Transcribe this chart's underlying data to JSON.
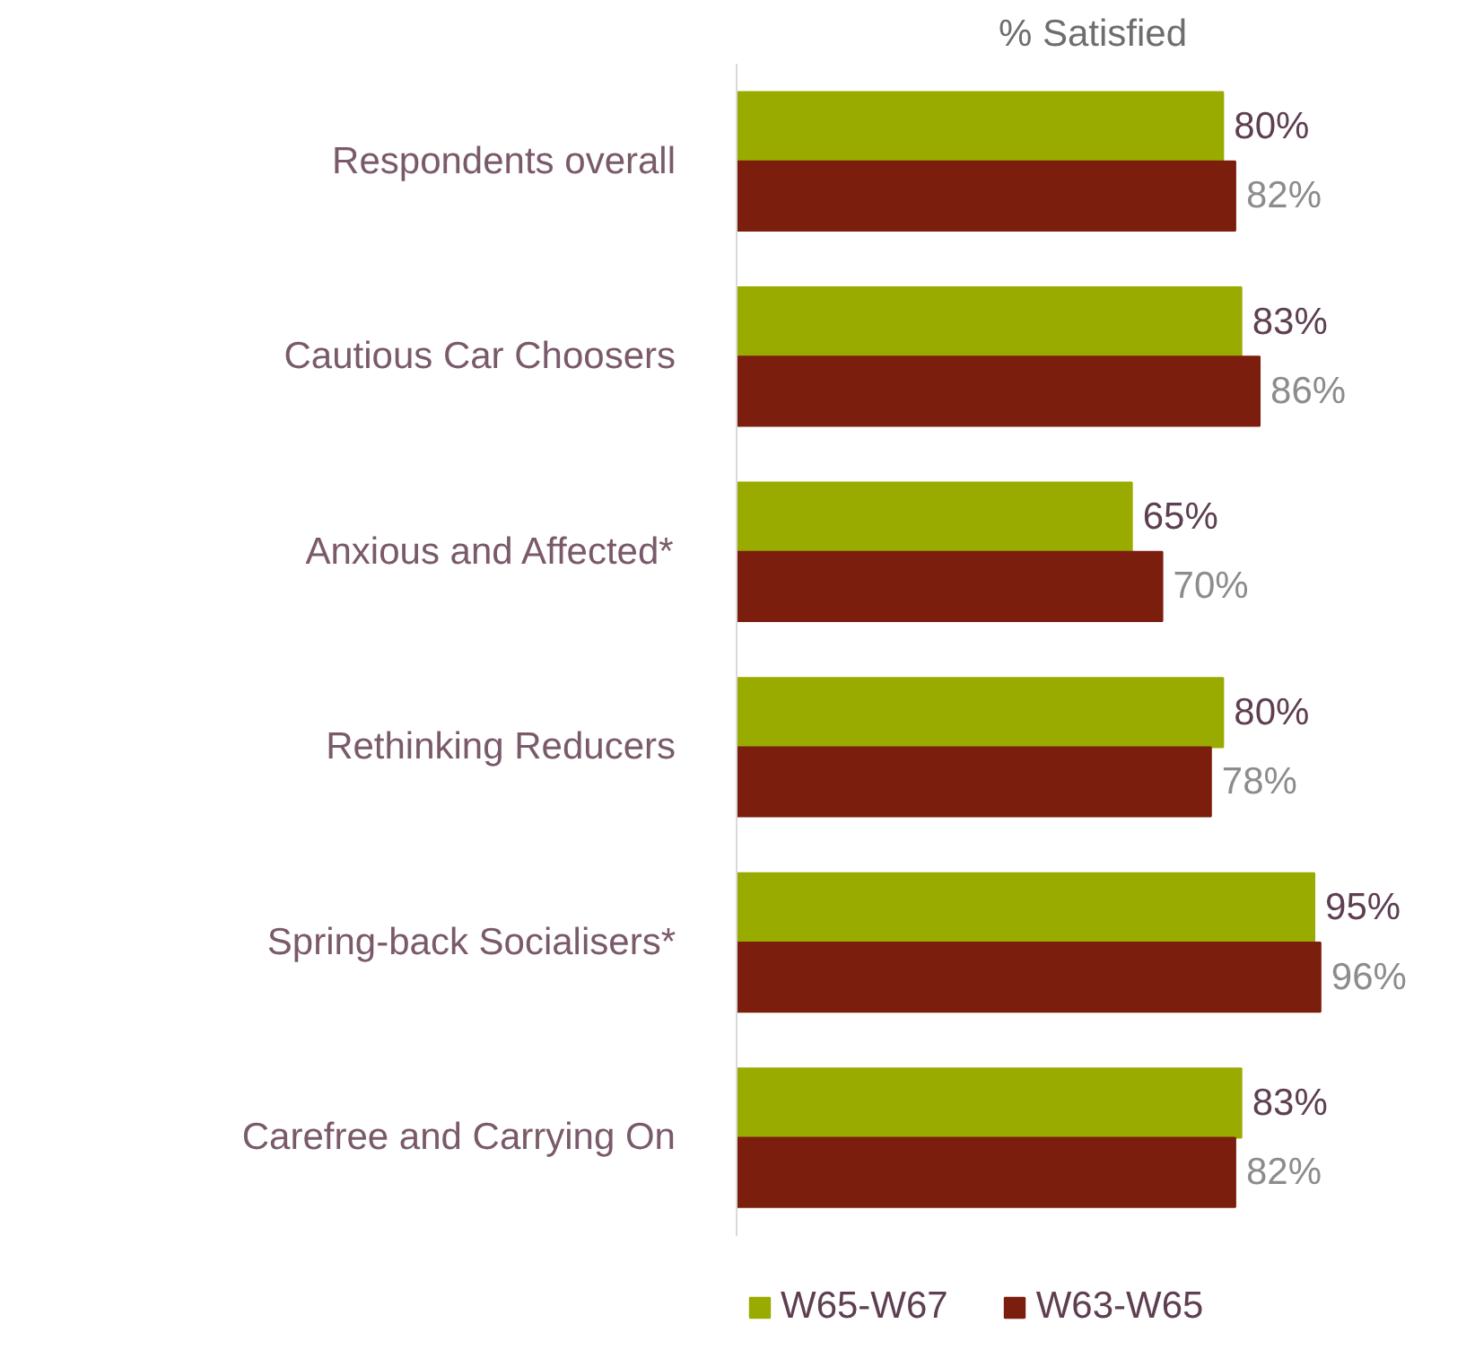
{
  "chart_data": {
    "type": "bar",
    "orientation": "horizontal",
    "title": "% Satisfied",
    "categories": [
      "Respondents overall",
      "Cautious Car Choosers",
      "Anxious and Affected*",
      "Rethinking Reducers",
      "Spring-back Socialisers*",
      "Carefree and Carrying On"
    ],
    "series": [
      {
        "name": "W65-W67",
        "color": "#9aab00",
        "values": [
          80,
          83,
          65,
          80,
          95,
          83
        ],
        "value_labels": [
          "80%",
          "83%",
          "65%",
          "80%",
          "95%",
          "83%"
        ]
      },
      {
        "name": "W63-W65",
        "color": "#7b1e0e",
        "values": [
          82,
          86,
          70,
          78,
          96,
          82
        ],
        "value_labels": [
          "82%",
          "86%",
          "70%",
          "78%",
          "96%",
          "82%"
        ]
      }
    ],
    "tick_labels": "y",
    "grid": false,
    "legend": "bottom"
  }
}
